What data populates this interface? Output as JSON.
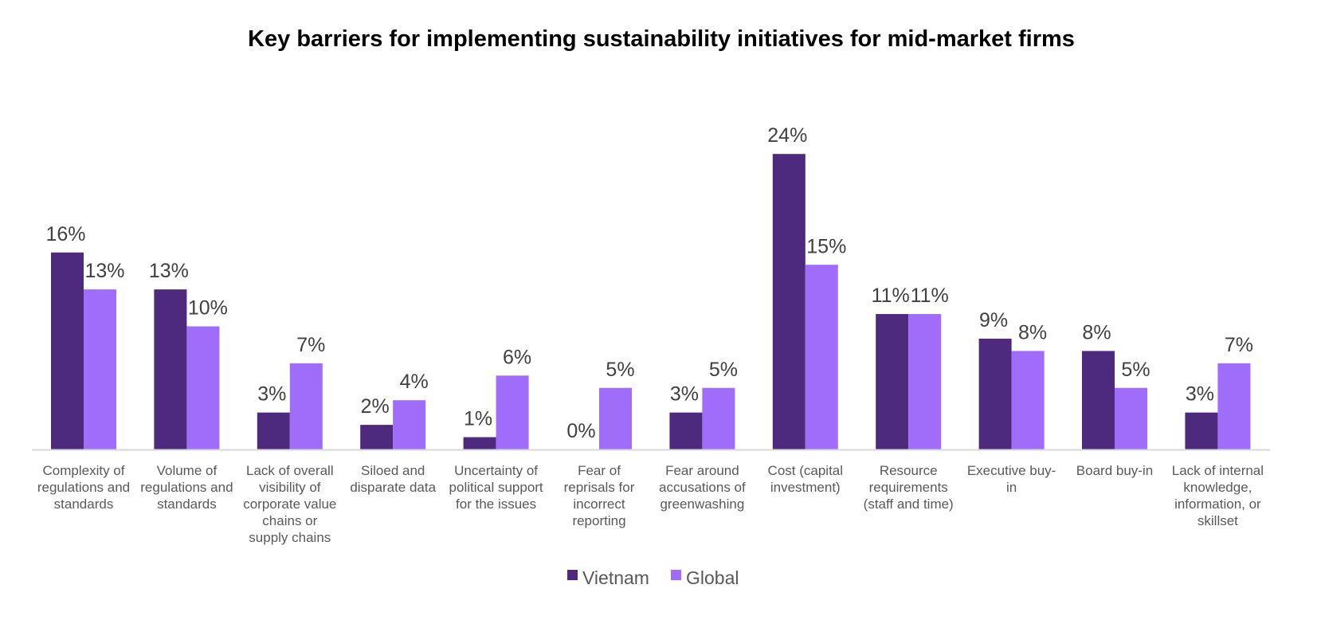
{
  "chart_data": {
    "type": "bar",
    "title": "Key barriers for implementing sustainability initiatives for mid-market firms",
    "xlabel": "",
    "ylabel": "",
    "ylim": [
      0,
      26
    ],
    "grid": false,
    "legend_position": "bottom",
    "value_format": "percent",
    "categories": [
      [
        "Complexity of",
        "regulations and",
        "standards"
      ],
      [
        "Volume of",
        "regulations and",
        "standards"
      ],
      [
        "Lack of overall",
        "visibility of",
        "corporate value",
        "chains or",
        "supply chains"
      ],
      [
        "Siloed and",
        "disparate data"
      ],
      [
        "Uncertainty of",
        "political support",
        "for the issues"
      ],
      [
        "Fear of",
        "reprisals for",
        "incorrect",
        "reporting"
      ],
      [
        "Fear around",
        "accusations of",
        "greenwashing"
      ],
      [
        "Cost (capital",
        "investment)"
      ],
      [
        "Resource",
        "requirements",
        "(staff and time)"
      ],
      [
        "Executive buy-",
        "in"
      ],
      [
        "Board buy-in"
      ],
      [
        "Lack of internal",
        "knowledge,",
        "information, or",
        "skillset"
      ]
    ],
    "series": [
      {
        "name": "Vietnam",
        "color": "#4E2A7E",
        "values": [
          16,
          13,
          3,
          2,
          1,
          0,
          3,
          24,
          11,
          9,
          8,
          3
        ],
        "labels": [
          "16%",
          "13%",
          "3%",
          "2%",
          "1%",
          "0%",
          "3%",
          "24%",
          "11%",
          "9%",
          "8%",
          "3%"
        ]
      },
      {
        "name": "Global",
        "color": "#A06CFA",
        "values": [
          13,
          10,
          7,
          4,
          6,
          5,
          5,
          15,
          11,
          8,
          5,
          7
        ],
        "labels": [
          "13%",
          "10%",
          "7%",
          "4%",
          "6%",
          "5%",
          "5%",
          "15%",
          "11%",
          "8%",
          "5%",
          "7%"
        ]
      }
    ]
  }
}
